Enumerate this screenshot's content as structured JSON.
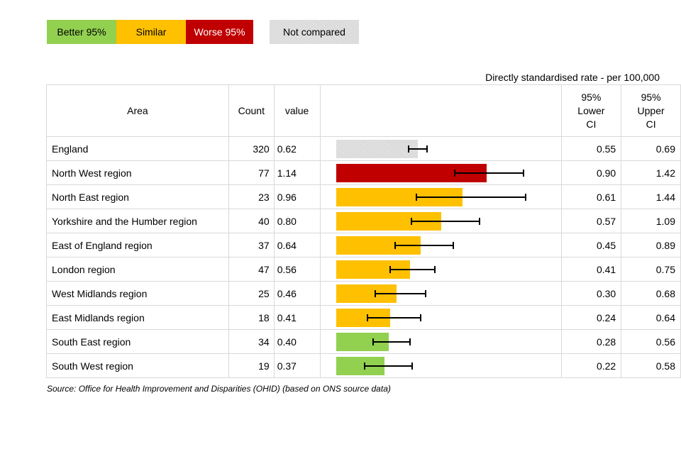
{
  "legend": {
    "better": "Better 95%",
    "similar": "Similar",
    "worse": "Worse 95%",
    "not_compared": "Not compared"
  },
  "rate_label": "Directly standardised rate - per 100,000",
  "headers": {
    "area": "Area",
    "count": "Count",
    "value": "value",
    "lower_ci": [
      "95%",
      "Lower",
      "CI"
    ],
    "upper_ci": [
      "95%",
      "Upper",
      "CI"
    ]
  },
  "source": "Source: Office for Health Improvement and Disparities (OHID) (based on ONS source data)",
  "colors": {
    "better": "#92d050",
    "similar": "#ffc000",
    "worse": "#c00000",
    "not_compared": "#d9d9d9"
  },
  "chart_data": {
    "type": "bar",
    "orientation": "horizontal",
    "title": "Directly standardised rate - per 100,000",
    "xlim": [
      0,
      1.6
    ],
    "rows": [
      {
        "area": "England",
        "count": "320",
        "value": "0.62",
        "lower": "0.55",
        "upper": "0.69",
        "category": "notcomp"
      },
      {
        "area": "North West region",
        "count": "77",
        "value": "1.14",
        "lower": "0.90",
        "upper": "1.42",
        "category": "worse"
      },
      {
        "area": "North East region",
        "count": "23",
        "value": "0.96",
        "lower": "0.61",
        "upper": "1.44",
        "category": "similar"
      },
      {
        "area": "Yorkshire and the Humber region",
        "count": "40",
        "value": "0.80",
        "lower": "0.57",
        "upper": "1.09",
        "category": "similar"
      },
      {
        "area": "East of England region",
        "count": "37",
        "value": "0.64",
        "lower": "0.45",
        "upper": "0.89",
        "category": "similar"
      },
      {
        "area": "London region",
        "count": "47",
        "value": "0.56",
        "lower": "0.41",
        "upper": "0.75",
        "category": "similar"
      },
      {
        "area": "West Midlands region",
        "count": "25",
        "value": "0.46",
        "lower": "0.30",
        "upper": "0.68",
        "category": "similar"
      },
      {
        "area": "East Midlands region",
        "count": "18",
        "value": "0.41",
        "lower": "0.24",
        "upper": "0.64",
        "category": "similar"
      },
      {
        "area": "South East region",
        "count": "34",
        "value": "0.40",
        "lower": "0.28",
        "upper": "0.56",
        "category": "better"
      },
      {
        "area": "South West region",
        "count": "19",
        "value": "0.37",
        "lower": "0.22",
        "upper": "0.58",
        "category": "better"
      }
    ]
  }
}
